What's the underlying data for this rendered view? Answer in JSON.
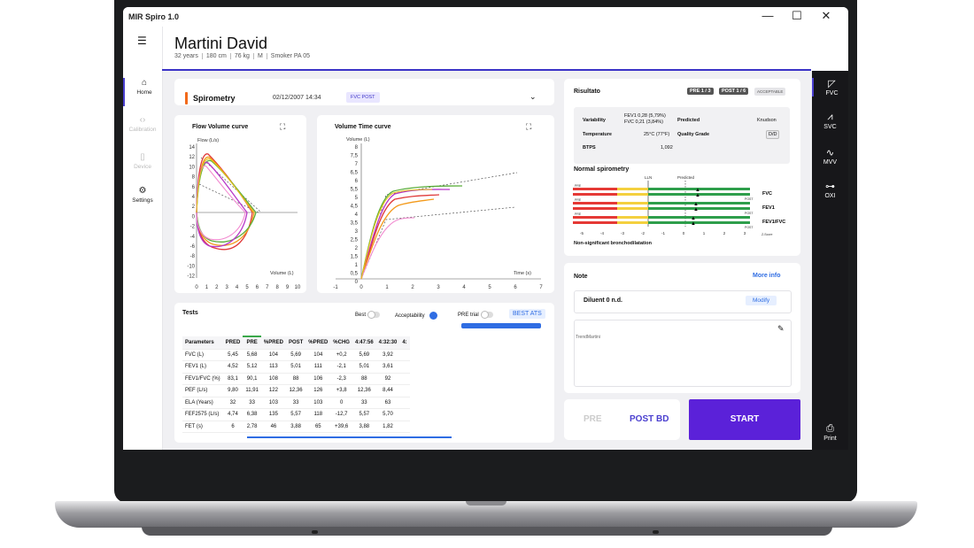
{
  "app": {
    "title": "MIR Spiro 1.0"
  },
  "window": {
    "minimize": "—",
    "maximize": "☐",
    "close": "✕"
  },
  "left_nav": [
    {
      "label": "Home",
      "icon": "home-icon",
      "state": "active"
    },
    {
      "label": "Calibration",
      "icon": "code-icon",
      "state": "disabled"
    },
    {
      "label": "Device",
      "icon": "device-icon",
      "state": "disabled"
    },
    {
      "label": "Settings",
      "icon": "gear-icon",
      "state": "normal"
    }
  ],
  "patient": {
    "name": "Martini David",
    "info": [
      "32 years",
      "180 cm",
      "76 kg",
      "M",
      "Smoker PA 05"
    ]
  },
  "spirometry": {
    "title": "Spirometry",
    "date": "02/12/2007 14:34",
    "badge": "FVC POST",
    "accent": "#f26a1b"
  },
  "flow_volume": {
    "title": "Flow Volume curve",
    "ylabel": "Flow (L/s)",
    "xlabel": "Volume (L)",
    "yticks": [
      "14",
      "12",
      "10",
      "8",
      "6",
      "4",
      "2",
      "0",
      "-2",
      "-4",
      "-6",
      "-8",
      "-10",
      "-12"
    ],
    "xticks": [
      "0",
      "1",
      "2",
      "3",
      "4",
      "5",
      "6",
      "7",
      "8",
      "9",
      "10"
    ]
  },
  "volume_time": {
    "title": "Volume Time curve",
    "ylabel": "Volume (L)",
    "xlabel": "Time (s)",
    "yticks": [
      "8",
      "7,5",
      "7",
      "6,5",
      "6",
      "5,5",
      "5",
      "4,5",
      "4",
      "3,5",
      "3",
      "2,5",
      "2",
      "1,5",
      "1",
      "0,5",
      "0"
    ],
    "xticks": [
      "-1",
      "0",
      "1",
      "2",
      "3",
      "4",
      "5",
      "6",
      "7"
    ]
  },
  "result": {
    "title": "Risultato",
    "pre_badge": "PRE 1 / 3",
    "post_badge": "POST 1 / 6",
    "acceptable": "ACCEPTABLE",
    "rows": [
      {
        "label": "Variability",
        "value": "FEV1 0,28 (5,79%)\nFVC 0,21 (3,84%)",
        "label2": "Predicted",
        "value2": "Knudson"
      },
      {
        "label": "Temperature",
        "value": "25°C (77°F)",
        "label2": "Quality Grade",
        "value2": "D/D"
      },
      {
        "label": "BTPS",
        "value": "1,092",
        "label2": "",
        "value2": ""
      }
    ]
  },
  "normal_spiro": {
    "title": "Normal spirometry",
    "lln": "LLN",
    "predicted": "Predicted",
    "rows": [
      "FVC",
      "FEV1",
      "FEV1/FVC"
    ],
    "pre": "PRE",
    "post": "POST",
    "scale": [
      "-5",
      "-4",
      "-3",
      "-2",
      "-1",
      "0",
      "1",
      "2",
      "3"
    ],
    "zscore": "Z-Score",
    "footer": "Non-significant bronchodilatation"
  },
  "note": {
    "title": "Note",
    "more_info": "More info",
    "diluent": "Diluent 0 n.d.",
    "modify": "Modify",
    "trend_placeholder": "TrendMartini"
  },
  "actions": {
    "pre": "PRE",
    "post_bd": "POST BD",
    "start": "START"
  },
  "right_nav": [
    {
      "label": "FVC",
      "icon": "fvc-icon"
    },
    {
      "label": "SVC",
      "icon": "svc-icon"
    },
    {
      "label": "MVV",
      "icon": "mvv-icon"
    },
    {
      "label": "OXI",
      "icon": "oxi-icon"
    },
    {
      "label": "Print",
      "icon": "print-icon"
    }
  ],
  "tests": {
    "title": "Tests",
    "best": "Best",
    "acceptability": "Acceptability",
    "pre_trial": "PRE trial",
    "best_ats": "BEST ATS",
    "columns": [
      "Parameters",
      "PRED",
      "PRE",
      "%PRED",
      "POST",
      "%PRED",
      "%CHG",
      "4:47:56",
      "4:32:30",
      "4:"
    ],
    "rows": [
      [
        "FVC (L)",
        "5,45",
        "5,68",
        "104",
        "5,69",
        "104",
        "+0,2",
        "5,69",
        "3,92",
        ""
      ],
      [
        "FEV1 (L)",
        "4,52",
        "5,12",
        "113",
        "5,01",
        "111",
        "-2,1",
        "5,01",
        "3,61",
        ""
      ],
      [
        "FEV1/FVC (%)",
        "83,1",
        "90,1",
        "108",
        "88",
        "106",
        "-2,3",
        "88",
        "92",
        ""
      ],
      [
        "PEF (L/s)",
        "9,80",
        "11,91",
        "122",
        "12,36",
        "126",
        "+3,8",
        "12,36",
        "8,44",
        ""
      ],
      [
        "ELA (Years)",
        "32",
        "33",
        "103",
        "33",
        "103",
        "0",
        "33",
        "63",
        ""
      ],
      [
        "FEF2575 (L/s)",
        "4,74",
        "6,38",
        "135",
        "5,57",
        "118",
        "-12,7",
        "5,57",
        "5,70",
        ""
      ],
      [
        "FET (s)",
        "6",
        "2,78",
        "46",
        "3,88",
        "65",
        "+39,6",
        "3,88",
        "1,82",
        ""
      ]
    ]
  }
}
